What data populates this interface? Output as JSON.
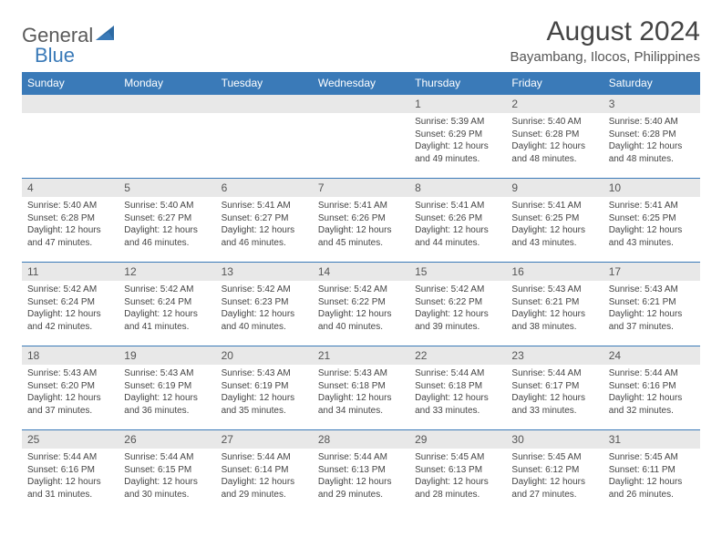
{
  "logo": {
    "text1": "General",
    "text2": "Blue"
  },
  "title": "August 2024",
  "subtitle": "Bayambang, Ilocos, Philippines",
  "colors": {
    "header_bg": "#3a7ab8",
    "header_text": "#ffffff",
    "daynum_bg": "#e8e8e8",
    "border": "#3a7ab8",
    "text": "#444444"
  },
  "weekdays": [
    "Sunday",
    "Monday",
    "Tuesday",
    "Wednesday",
    "Thursday",
    "Friday",
    "Saturday"
  ],
  "weeks": [
    [
      null,
      null,
      null,
      null,
      {
        "n": "1",
        "sr": "Sunrise: 5:39 AM",
        "ss": "Sunset: 6:29 PM",
        "d1": "Daylight: 12 hours",
        "d2": "and 49 minutes."
      },
      {
        "n": "2",
        "sr": "Sunrise: 5:40 AM",
        "ss": "Sunset: 6:28 PM",
        "d1": "Daylight: 12 hours",
        "d2": "and 48 minutes."
      },
      {
        "n": "3",
        "sr": "Sunrise: 5:40 AM",
        "ss": "Sunset: 6:28 PM",
        "d1": "Daylight: 12 hours",
        "d2": "and 48 minutes."
      }
    ],
    [
      {
        "n": "4",
        "sr": "Sunrise: 5:40 AM",
        "ss": "Sunset: 6:28 PM",
        "d1": "Daylight: 12 hours",
        "d2": "and 47 minutes."
      },
      {
        "n": "5",
        "sr": "Sunrise: 5:40 AM",
        "ss": "Sunset: 6:27 PM",
        "d1": "Daylight: 12 hours",
        "d2": "and 46 minutes."
      },
      {
        "n": "6",
        "sr": "Sunrise: 5:41 AM",
        "ss": "Sunset: 6:27 PM",
        "d1": "Daylight: 12 hours",
        "d2": "and 46 minutes."
      },
      {
        "n": "7",
        "sr": "Sunrise: 5:41 AM",
        "ss": "Sunset: 6:26 PM",
        "d1": "Daylight: 12 hours",
        "d2": "and 45 minutes."
      },
      {
        "n": "8",
        "sr": "Sunrise: 5:41 AM",
        "ss": "Sunset: 6:26 PM",
        "d1": "Daylight: 12 hours",
        "d2": "and 44 minutes."
      },
      {
        "n": "9",
        "sr": "Sunrise: 5:41 AM",
        "ss": "Sunset: 6:25 PM",
        "d1": "Daylight: 12 hours",
        "d2": "and 43 minutes."
      },
      {
        "n": "10",
        "sr": "Sunrise: 5:41 AM",
        "ss": "Sunset: 6:25 PM",
        "d1": "Daylight: 12 hours",
        "d2": "and 43 minutes."
      }
    ],
    [
      {
        "n": "11",
        "sr": "Sunrise: 5:42 AM",
        "ss": "Sunset: 6:24 PM",
        "d1": "Daylight: 12 hours",
        "d2": "and 42 minutes."
      },
      {
        "n": "12",
        "sr": "Sunrise: 5:42 AM",
        "ss": "Sunset: 6:24 PM",
        "d1": "Daylight: 12 hours",
        "d2": "and 41 minutes."
      },
      {
        "n": "13",
        "sr": "Sunrise: 5:42 AM",
        "ss": "Sunset: 6:23 PM",
        "d1": "Daylight: 12 hours",
        "d2": "and 40 minutes."
      },
      {
        "n": "14",
        "sr": "Sunrise: 5:42 AM",
        "ss": "Sunset: 6:22 PM",
        "d1": "Daylight: 12 hours",
        "d2": "and 40 minutes."
      },
      {
        "n": "15",
        "sr": "Sunrise: 5:42 AM",
        "ss": "Sunset: 6:22 PM",
        "d1": "Daylight: 12 hours",
        "d2": "and 39 minutes."
      },
      {
        "n": "16",
        "sr": "Sunrise: 5:43 AM",
        "ss": "Sunset: 6:21 PM",
        "d1": "Daylight: 12 hours",
        "d2": "and 38 minutes."
      },
      {
        "n": "17",
        "sr": "Sunrise: 5:43 AM",
        "ss": "Sunset: 6:21 PM",
        "d1": "Daylight: 12 hours",
        "d2": "and 37 minutes."
      }
    ],
    [
      {
        "n": "18",
        "sr": "Sunrise: 5:43 AM",
        "ss": "Sunset: 6:20 PM",
        "d1": "Daylight: 12 hours",
        "d2": "and 37 minutes."
      },
      {
        "n": "19",
        "sr": "Sunrise: 5:43 AM",
        "ss": "Sunset: 6:19 PM",
        "d1": "Daylight: 12 hours",
        "d2": "and 36 minutes."
      },
      {
        "n": "20",
        "sr": "Sunrise: 5:43 AM",
        "ss": "Sunset: 6:19 PM",
        "d1": "Daylight: 12 hours",
        "d2": "and 35 minutes."
      },
      {
        "n": "21",
        "sr": "Sunrise: 5:43 AM",
        "ss": "Sunset: 6:18 PM",
        "d1": "Daylight: 12 hours",
        "d2": "and 34 minutes."
      },
      {
        "n": "22",
        "sr": "Sunrise: 5:44 AM",
        "ss": "Sunset: 6:18 PM",
        "d1": "Daylight: 12 hours",
        "d2": "and 33 minutes."
      },
      {
        "n": "23",
        "sr": "Sunrise: 5:44 AM",
        "ss": "Sunset: 6:17 PM",
        "d1": "Daylight: 12 hours",
        "d2": "and 33 minutes."
      },
      {
        "n": "24",
        "sr": "Sunrise: 5:44 AM",
        "ss": "Sunset: 6:16 PM",
        "d1": "Daylight: 12 hours",
        "d2": "and 32 minutes."
      }
    ],
    [
      {
        "n": "25",
        "sr": "Sunrise: 5:44 AM",
        "ss": "Sunset: 6:16 PM",
        "d1": "Daylight: 12 hours",
        "d2": "and 31 minutes."
      },
      {
        "n": "26",
        "sr": "Sunrise: 5:44 AM",
        "ss": "Sunset: 6:15 PM",
        "d1": "Daylight: 12 hours",
        "d2": "and 30 minutes."
      },
      {
        "n": "27",
        "sr": "Sunrise: 5:44 AM",
        "ss": "Sunset: 6:14 PM",
        "d1": "Daylight: 12 hours",
        "d2": "and 29 minutes."
      },
      {
        "n": "28",
        "sr": "Sunrise: 5:44 AM",
        "ss": "Sunset: 6:13 PM",
        "d1": "Daylight: 12 hours",
        "d2": "and 29 minutes."
      },
      {
        "n": "29",
        "sr": "Sunrise: 5:45 AM",
        "ss": "Sunset: 6:13 PM",
        "d1": "Daylight: 12 hours",
        "d2": "and 28 minutes."
      },
      {
        "n": "30",
        "sr": "Sunrise: 5:45 AM",
        "ss": "Sunset: 6:12 PM",
        "d1": "Daylight: 12 hours",
        "d2": "and 27 minutes."
      },
      {
        "n": "31",
        "sr": "Sunrise: 5:45 AM",
        "ss": "Sunset: 6:11 PM",
        "d1": "Daylight: 12 hours",
        "d2": "and 26 minutes."
      }
    ]
  ]
}
